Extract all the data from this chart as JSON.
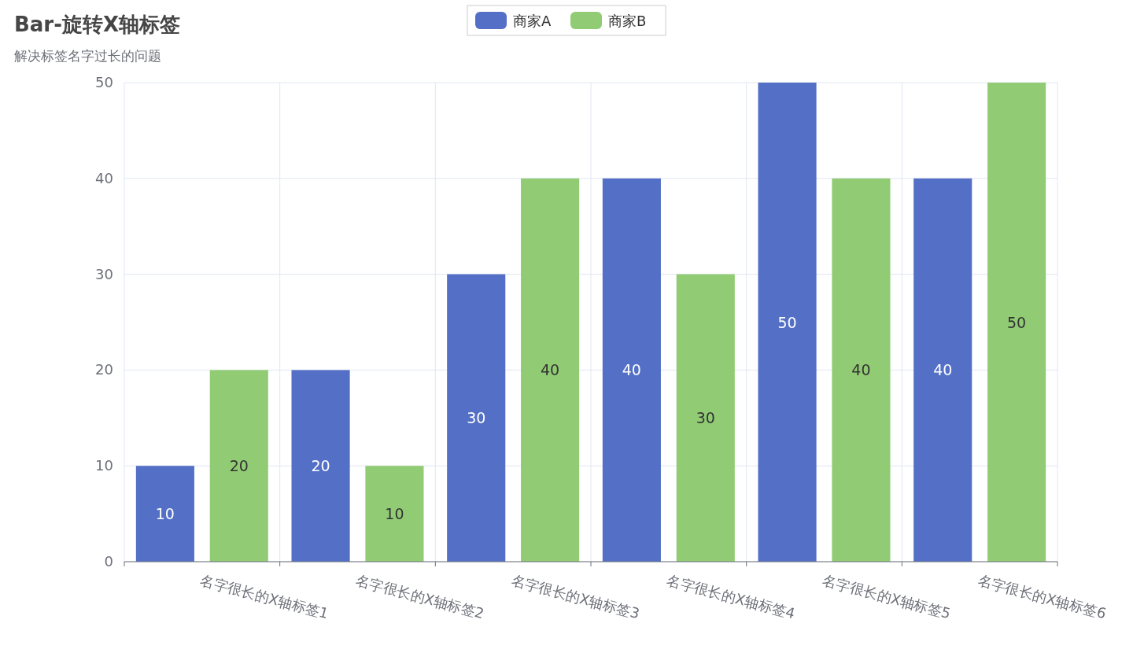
{
  "chart_data": {
    "type": "bar",
    "title": "Bar-旋转X轴标签",
    "subtitle": "解决标签名字过长的问题",
    "categories": [
      "名字很长的X轴标签1",
      "名字很长的X轴标签2",
      "名字很长的X轴标签3",
      "名字很长的X轴标签4",
      "名字很长的X轴标签5",
      "名字很长的X轴标签6"
    ],
    "series": [
      {
        "name": "商家A",
        "color": "#5470c6",
        "values": [
          10,
          20,
          30,
          40,
          50,
          40
        ]
      },
      {
        "name": "商家B",
        "color": "#91cc75",
        "values": [
          20,
          10,
          40,
          30,
          40,
          50
        ]
      }
    ],
    "ylim": [
      0,
      50
    ],
    "yticks": [
      0,
      10,
      20,
      30,
      40,
      50
    ],
    "grid": true,
    "legend": "top",
    "data_labels": true
  }
}
